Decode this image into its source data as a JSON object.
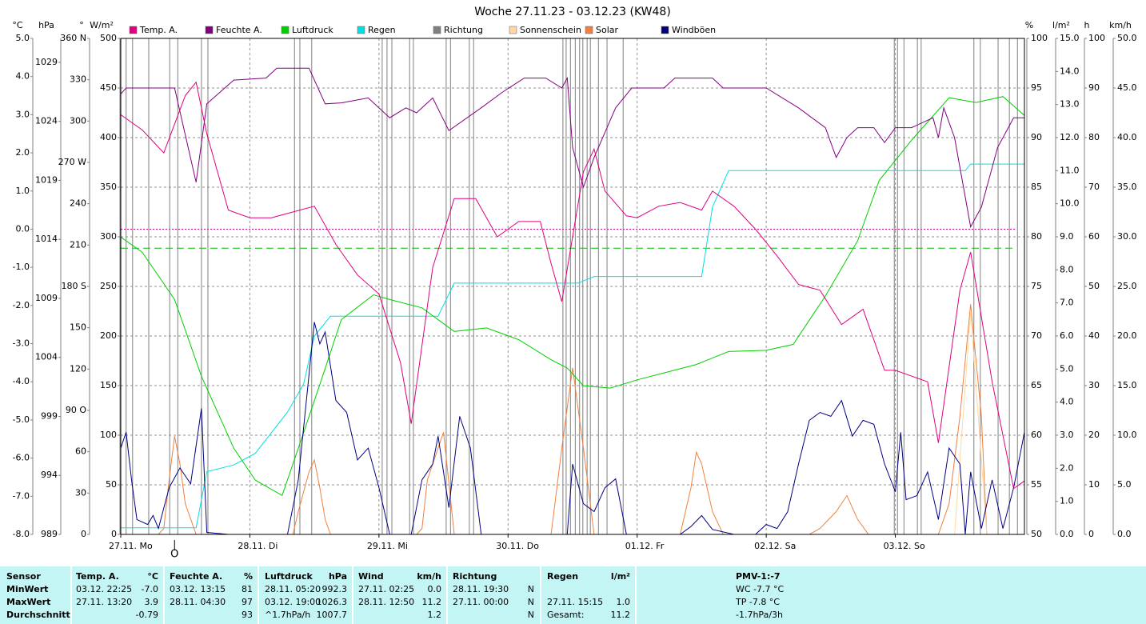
{
  "chart_data": {
    "type": "line",
    "title": "Woche 27.11.23 - 03.12.23 (KW48)",
    "xlim": [
      0,
      168
    ],
    "xticks": [
      {
        "value": 0,
        "label": "27.11. Mo"
      },
      {
        "value": 24,
        "label": "28.11. Di"
      },
      {
        "value": 48,
        "label": "29.11. Mi"
      },
      {
        "value": 72,
        "label": "30.11. Do"
      },
      {
        "value": 96,
        "label": "01.12. Fr"
      },
      {
        "value": 120,
        "label": "02.12. Sa"
      },
      {
        "value": 144,
        "label": "03.12. So"
      }
    ],
    "grid": true,
    "axes": [
      {
        "unit": "°C",
        "side": "left",
        "color": "#e0007f",
        "lim": [
          -8,
          5
        ],
        "ticks": [
          {
            "value": 5,
            "label": "5.0"
          },
          {
            "value": 4,
            "label": "4.0"
          },
          {
            "value": 3,
            "label": "3.0"
          },
          {
            "value": 2,
            "label": "2.0"
          },
          {
            "value": 1,
            "label": "1.0"
          },
          {
            "value": 0,
            "label": "0.0"
          },
          {
            "value": -1,
            "label": "-1.0"
          },
          {
            "value": -2,
            "label": "-2.0"
          },
          {
            "value": -3,
            "label": "-3.0"
          },
          {
            "value": -4,
            "label": "-4.0"
          },
          {
            "value": -5,
            "label": "-5.0"
          },
          {
            "value": -6,
            "label": "-6.0"
          },
          {
            "value": -7,
            "label": "-7.0"
          },
          {
            "value": -8,
            "label": "-8.0"
          }
        ]
      },
      {
        "unit": "hPa",
        "side": "left",
        "color": "#00c000",
        "lim": [
          989,
          1031.03
        ],
        "ticks": [
          989,
          994,
          999,
          1004,
          1009,
          1014,
          1019,
          1024,
          1029
        ]
      },
      {
        "unit": "°",
        "side": "left",
        "color": "#606060",
        "lim": [
          0,
          360
        ],
        "ticks": [
          0,
          30,
          60,
          {
            "value": 90,
            "label": "90 O"
          },
          120,
          150,
          {
            "value": 180,
            "label": "180 S"
          },
          210,
          240,
          {
            "value": 270,
            "label": "270 W"
          },
          300,
          330,
          {
            "value": 360,
            "label": "360 N"
          }
        ]
      },
      {
        "unit": "W/m²",
        "side": "left",
        "color": "#e07020",
        "lim": [
          0,
          500
        ],
        "ticks": [
          0,
          50,
          100,
          150,
          200,
          250,
          300,
          350,
          400,
          450,
          500
        ]
      },
      {
        "unit": "%",
        "side": "right",
        "color": "#800080",
        "lim": [
          50,
          100
        ],
        "ticks": [
          50,
          55,
          60,
          65,
          70,
          75,
          80,
          85,
          90,
          95,
          100
        ]
      },
      {
        "unit": "l/m²",
        "side": "right",
        "color": "#00d0d0",
        "lim": [
          0,
          15
        ],
        "ticks": [
          {
            "value": 0,
            "label": "0.0"
          },
          {
            "value": 1,
            "label": "1.0"
          },
          {
            "value": 2,
            "label": "2.0"
          },
          {
            "value": 3,
            "label": "3.0"
          },
          {
            "value": 4,
            "label": "4.0"
          },
          {
            "value": 5,
            "label": "5.0"
          },
          {
            "value": 6,
            "label": "6.0"
          },
          {
            "value": 7,
            "label": "7.0"
          },
          {
            "value": 8,
            "label": "8.0"
          },
          {
            "value": 9,
            "label": "9.0"
          },
          {
            "value": 10,
            "label": "10.0"
          },
          {
            "value": 11,
            "label": "11.0"
          },
          {
            "value": 12,
            "label": "12.0"
          },
          {
            "value": 13,
            "label": "13.0"
          },
          {
            "value": 14,
            "label": "14.0"
          },
          {
            "value": 15,
            "label": "15.0"
          }
        ]
      },
      {
        "unit": "h",
        "side": "right",
        "color": "#f0c080",
        "lim": [
          0,
          100
        ],
        "ticks": [
          0,
          10,
          20,
          30,
          40,
          50,
          60,
          70,
          80,
          90,
          100
        ]
      },
      {
        "unit": "km/h",
        "side": "right",
        "color": "#000080",
        "lim": [
          0,
          50
        ],
        "ticks": [
          {
            "value": 0,
            "label": "0.0"
          },
          {
            "value": 5,
            "label": "5.0"
          },
          {
            "value": 10,
            "label": "10.0"
          },
          {
            "value": 15,
            "label": "15.0"
          },
          {
            "value": 20,
            "label": "20.0"
          },
          {
            "value": 25,
            "label": "25.0"
          },
          {
            "value": 30,
            "label": "30.0"
          },
          {
            "value": 35,
            "label": "35.0"
          },
          {
            "value": 40,
            "label": "40.0"
          },
          {
            "value": 45,
            "label": "45.0"
          },
          {
            "value": 50,
            "label": "50.0"
          }
        ]
      }
    ],
    "reference_lines": [
      {
        "axis": "°C",
        "value": 0,
        "color": "#e0007f"
      },
      {
        "axis": "hPa",
        "value": 1013.25,
        "color": "#00c000"
      }
    ],
    "series": [
      {
        "name": "Temp. A.",
        "color": "#e0007f",
        "axis": "°C",
        "x": [
          0,
          4,
          8,
          12,
          14,
          16,
          20,
          24,
          28,
          32,
          36,
          40,
          44,
          48,
          52,
          54,
          58,
          62,
          66,
          70,
          74,
          78,
          80,
          82,
          86,
          88,
          90,
          94,
          96,
          100,
          104,
          108,
          110,
          114,
          118,
          122,
          126,
          130,
          134,
          138,
          142,
          144,
          148,
          150,
          152,
          156,
          158,
          162,
          166,
          168
        ],
        "values": [
          3.0,
          2.6,
          2.0,
          3.5,
          3.85,
          2.5,
          0.5,
          0.3,
          0.3,
          0.45,
          0.6,
          -0.4,
          -1.2,
          -1.7,
          -3.5,
          -5.1,
          -1.0,
          0.8,
          0.8,
          -0.2,
          0.2,
          0.2,
          -0.9,
          -1.9,
          1.5,
          2.1,
          1.0,
          0.35,
          0.3,
          0.6,
          0.7,
          0.5,
          1.0,
          0.6,
          0.0,
          -0.7,
          -1.45,
          -1.6,
          -2.5,
          -2.1,
          -3.7,
          -3.7,
          -3.9,
          -4.0,
          -5.6,
          -1.6,
          -0.6,
          -4.0,
          -6.8,
          -6.6
        ]
      },
      {
        "name": "Feuchte A.",
        "color": "#800080",
        "axis": "%",
        "x": [
          0,
          1,
          10,
          14,
          16,
          21,
          27,
          29,
          35,
          38,
          41,
          46,
          50,
          53,
          55,
          58,
          61,
          67,
          71,
          75,
          79,
          82,
          83,
          84,
          86,
          88,
          92,
          95,
          101,
          103,
          110,
          112,
          120,
          126,
          131,
          133,
          135,
          137,
          140,
          142,
          144,
          147,
          151,
          152,
          153,
          155,
          157,
          158,
          160,
          163,
          166,
          168
        ],
        "values": [
          94.4,
          95,
          95,
          85.5,
          93.4,
          95.8,
          96,
          97,
          97,
          93.4,
          93.5,
          94,
          92,
          93,
          92.5,
          94,
          90.7,
          93,
          94.6,
          96,
          96,
          95,
          96,
          89,
          85,
          88,
          93,
          95,
          95,
          96,
          96,
          95,
          95,
          93,
          91,
          88,
          90,
          91,
          91,
          89.5,
          91,
          91,
          92,
          90,
          93,
          90,
          84,
          81,
          83,
          89,
          92,
          92
        ]
      },
      {
        "name": "Luftdruck",
        "color": "#00d000",
        "axis": "hPa",
        "x": [
          0,
          4,
          10,
          15,
          21,
          25,
          30,
          33,
          37,
          41,
          47,
          50,
          56,
          62,
          68,
          74,
          80,
          83,
          86,
          91,
          96,
          102,
          107,
          113,
          120,
          125,
          131,
          137,
          141,
          147,
          154,
          159,
          164,
          168
        ],
        "values": [
          1014.2,
          1012.9,
          1008.9,
          1002.4,
          996.3,
          993.6,
          992.3,
          996.3,
          1001.7,
          1007.2,
          1009.3,
          1008.9,
          1008.2,
          1006.2,
          1006.5,
          1005.5,
          1003.8,
          1003.1,
          1001.6,
          1001.4,
          1002.1,
          1002.8,
          1003.4,
          1004.5,
          1004.6,
          1005.1,
          1009.2,
          1013.9,
          1019.0,
          1022.4,
          1026.0,
          1025.6,
          1026.1,
          1024.5
        ]
      },
      {
        "name": "Regen",
        "color": "#00e0e0",
        "axis": "l/m²",
        "x": [
          0,
          14,
          16,
          21,
          25,
          31,
          34,
          36,
          39,
          59,
          62,
          85,
          88,
          108,
          110,
          113,
          157,
          158,
          168
        ],
        "values": [
          0.2,
          0.2,
          1.9,
          2.1,
          2.45,
          3.7,
          4.55,
          6.0,
          6.6,
          6.6,
          7.6,
          7.6,
          7.8,
          7.8,
          9.9,
          11.0,
          11.0,
          11.2,
          11.2
        ]
      },
      {
        "name": "Richtung",
        "color": "#808080",
        "axis": "°",
        "type": "step",
        "x": [
          0,
          1.0,
          2.2,
          5.2,
          9.1,
          10.6,
          15.0,
          16.2,
          32.3,
          33.3,
          35.5,
          48.6,
          49.5,
          50.4,
          53.7,
          54.4,
          60.5,
          61.3,
          64.8,
          65.6,
          82.2,
          82.8,
          83.6,
          84.5,
          85.3,
          85.9,
          86.7,
          87.3,
          88.8,
          90.4,
          93.4,
          143.8,
          144.4,
          145.6,
          148.1,
          148.8,
          158.6,
          159.8,
          163.1,
          165.2,
          166.7
        ],
        "values": [
          360,
          0,
          360,
          0,
          360,
          0,
          360,
          0,
          360,
          0,
          360,
          0,
          360,
          0,
          360,
          0,
          360,
          0,
          360,
          0,
          360,
          0,
          360,
          0,
          360,
          0,
          360,
          0,
          360,
          0,
          360,
          0,
          360,
          0,
          360,
          0,
          360,
          0,
          360,
          0,
          360
        ]
      },
      {
        "name": "Sonnenschein",
        "color": "#ffd8a0",
        "axis": "h",
        "x": [
          0,
          155,
          158,
          161,
          168
        ],
        "values": [
          0,
          0,
          45,
          0,
          0
        ]
      },
      {
        "name": "Solar",
        "color": "#f08040",
        "axis": "W/m²",
        "x": [
          0,
          7,
          8,
          9,
          10,
          11,
          12,
          14,
          32,
          33,
          35,
          36,
          37,
          38,
          39,
          55,
          56,
          57,
          59,
          60,
          62,
          80,
          82,
          84,
          86,
          88,
          104,
          106,
          107,
          108,
          110,
          112,
          128,
          130,
          133,
          135,
          137,
          139,
          152,
          154,
          156,
          158,
          160,
          161,
          168
        ],
        "values": [
          0,
          0,
          6,
          55,
          99,
          71,
          31,
          0,
          0,
          23,
          63,
          75,
          47,
          15,
          0,
          0,
          6,
          55,
          87,
          103,
          0,
          0,
          87,
          168,
          87,
          0,
          0,
          47,
          83,
          71,
          23,
          0,
          0,
          6,
          23,
          39,
          15,
          0,
          0,
          31,
          119,
          232,
          119,
          0,
          0
        ]
      },
      {
        "name": "Windböen",
        "color": "#000080",
        "axis": "km/h",
        "x": [
          0,
          1,
          2,
          3,
          5,
          6,
          7,
          9,
          11,
          13,
          15,
          16,
          20,
          31,
          33,
          36,
          37,
          38,
          40,
          42,
          44,
          46,
          48,
          50,
          54,
          56,
          58,
          59,
          61,
          63,
          65,
          67,
          83,
          84,
          86,
          88,
          90,
          92,
          94,
          104,
          106,
          108,
          110,
          114,
          118,
          120,
          122,
          124,
          126,
          128,
          130,
          132,
          134,
          136,
          138,
          140,
          142,
          144,
          145,
          146,
          148,
          150,
          152,
          154,
          156,
          157,
          158,
          160,
          162,
          164,
          166,
          168
        ],
        "values": [
          8.7,
          10.3,
          5.5,
          1.5,
          1.0,
          1.9,
          0.6,
          4.7,
          6.7,
          5.1,
          12.7,
          0.2,
          0,
          0,
          5.5,
          21.4,
          19.2,
          20.4,
          13.5,
          12.3,
          7.5,
          8.7,
          4.7,
          0,
          0,
          5.5,
          7.1,
          9.9,
          2.7,
          11.9,
          8.7,
          0,
          0,
          7.1,
          3.1,
          2.3,
          4.7,
          5.6,
          0,
          0,
          0.8,
          1.9,
          0.5,
          0,
          0,
          1.0,
          0.6,
          2.3,
          7.1,
          11.5,
          12.3,
          11.9,
          13.5,
          9.9,
          11.5,
          11.1,
          7.1,
          4.3,
          10.3,
          3.5,
          3.9,
          6.3,
          1.5,
          8.7,
          7.1,
          0,
          6.3,
          0.6,
          5.5,
          0.6,
          4.7,
          10.3
        ]
      }
    ],
    "annotations": [
      {
        "x": 10,
        "text": "O"
      }
    ]
  },
  "table": {
    "rows": [
      [
        "Sensor",
        "Temp. A.",
        "°C",
        "Feuchte A.",
        "%",
        "Luftdruck",
        "hPa",
        "Wind",
        "km/h",
        "Richtung",
        null,
        "Regen",
        "l/m²",
        "PMV-1:-7"
      ],
      [
        "MinWert",
        "03.12.  22:25",
        "-7.0",
        "03.12.  13:15",
        "81",
        "28.11.  05:20",
        "992.3",
        "27.11.  02:25",
        "0.0",
        "28.11.  19:30",
        "N",
        null,
        null,
        "WC -7.7 °C"
      ],
      [
        "MaxWert",
        "27.11.  13:20",
        "3.9",
        "28.11.  04:30",
        "97",
        "03.12.  19:00",
        "1026.3",
        "28.11.  12:50",
        "11.2",
        "27.11.  00:00",
        "N",
        "27.11.  15:15",
        "1.0",
        "TP -7.8 °C"
      ],
      [
        "Durchschnitt",
        null,
        "-0.79",
        null,
        "93",
        "^1.7hPa/h",
        "1007.7",
        null,
        "1.2",
        null,
        "N",
        "Gesamt:",
        "11.2",
        "-1.7hPa/3h"
      ]
    ]
  }
}
